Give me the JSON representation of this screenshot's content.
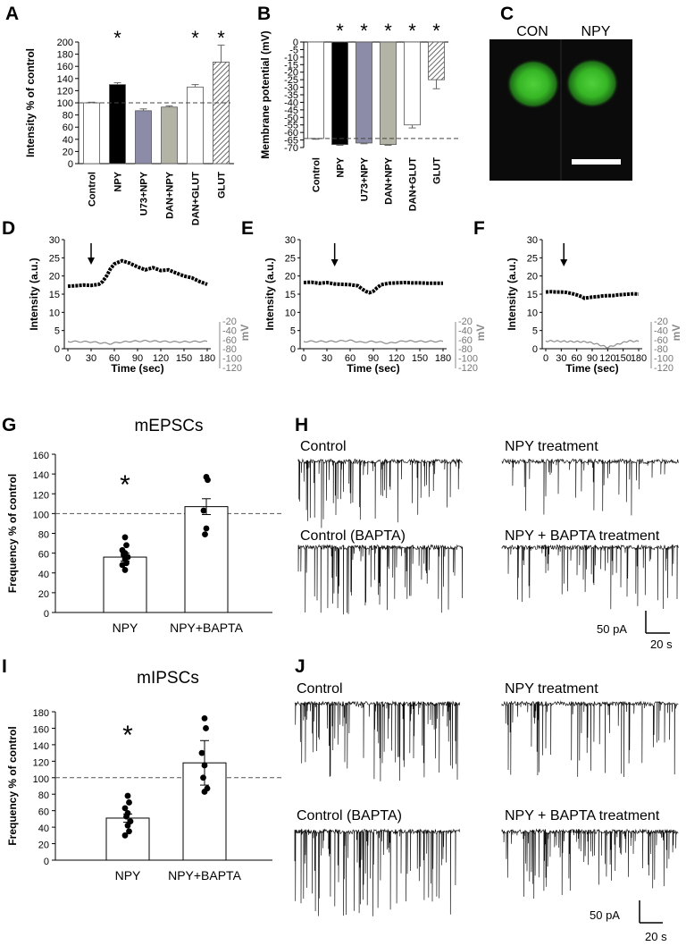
{
  "panel_letters": {
    "A": "A",
    "B": "B",
    "C": "C",
    "D": "D",
    "E": "E",
    "F": "F",
    "G": "G",
    "H": "H",
    "I": "I",
    "J": "J"
  },
  "significance_mark": "*",
  "chart_data": [
    {
      "panel": "A",
      "type": "bar",
      "ylabel": "Intensity % of control",
      "ylim": [
        0,
        200
      ],
      "yticks": [
        0,
        20,
        40,
        60,
        80,
        100,
        120,
        140,
        160,
        180,
        200
      ],
      "reference_line": 100,
      "categories": [
        "Control",
        "NPY",
        "U73+NPY",
        "DAN+NPY",
        "DAN+GLUT",
        "GLUT"
      ],
      "values": [
        100,
        130,
        87,
        93,
        126,
        167
      ],
      "errors": [
        1,
        3,
        3,
        2,
        4,
        28
      ],
      "fills": [
        "#ffffff",
        "#000000",
        "#8c8ca8",
        "#b4b4a6",
        "#ffffff",
        "hatch"
      ],
      "significant": [
        false,
        true,
        false,
        false,
        true,
        true
      ]
    },
    {
      "panel": "B",
      "type": "bar",
      "ylabel": "Membrane potential (mV)",
      "ylim": [
        -70,
        0
      ],
      "yticks": [
        0,
        -5,
        -10,
        -15,
        -20,
        -25,
        -30,
        -35,
        -40,
        -45,
        -50,
        -55,
        -60,
        -65,
        -70
      ],
      "reference_line": -64,
      "categories": [
        "Control",
        "NPY",
        "U73+NPY",
        "DAN+NPY",
        "DAN+GLUT",
        "GLUT"
      ],
      "values": [
        -64,
        -68,
        -67,
        -68,
        -55,
        -25
      ],
      "errors": [
        0.5,
        0.5,
        0.5,
        0.5,
        2,
        6
      ],
      "fills": [
        "#ffffff",
        "#000000",
        "#8c8ca8",
        "#b4b4a6",
        "#ffffff",
        "hatch"
      ],
      "significant": [
        false,
        true,
        true,
        true,
        true,
        true
      ]
    },
    {
      "panel": "D",
      "type": "line",
      "xlabel": "Time (sec)",
      "ylabel": "Intensity (a.u.)",
      "y2label": "mV",
      "xlim": [
        0,
        180
      ],
      "xticks": [
        0,
        30,
        60,
        90,
        120,
        150,
        180
      ],
      "ylim": [
        0,
        30
      ],
      "yticks": [
        0,
        5,
        10,
        15,
        20,
        25,
        30
      ],
      "y2ticks": [
        "-20",
        "-40",
        "-60",
        "-80",
        "-100",
        "-120"
      ],
      "stimulus_time": 30,
      "intensity": {
        "t": [
          0,
          10,
          20,
          30,
          40,
          45,
          50,
          55,
          60,
          70,
          80,
          90,
          100,
          110,
          120,
          130,
          140,
          150,
          160,
          170,
          180
        ],
        "v": [
          17.2,
          17.3,
          17.5,
          17.4,
          17.7,
          18.5,
          20,
          22,
          23.3,
          24.2,
          23.5,
          22.5,
          21.7,
          22.3,
          21.5,
          21.7,
          20.8,
          20,
          19.5,
          18.5,
          17.7
        ]
      },
      "potential_mV": {
        "t": [
          0,
          30,
          55,
          65,
          80,
          100,
          140,
          180
        ],
        "v": [
          -62,
          -63,
          -67,
          -64,
          -62,
          -61,
          -63,
          -62
        ]
      }
    },
    {
      "panel": "E",
      "type": "line",
      "xlabel": "Time (sec)",
      "ylabel": "Intensity (a.u.)",
      "y2label": "mV",
      "xlim": [
        0,
        180
      ],
      "xticks": [
        0,
        30,
        60,
        90,
        120,
        150,
        180
      ],
      "ylim": [
        0,
        30
      ],
      "yticks": [
        0,
        5,
        10,
        15,
        20,
        25,
        30
      ],
      "y2ticks": [
        "-20",
        "-40",
        "-60",
        "-80",
        "-100",
        "-120"
      ],
      "stimulus_time": 40,
      "intensity": {
        "t": [
          0,
          10,
          20,
          30,
          40,
          50,
          60,
          70,
          75,
          80,
          85,
          90,
          95,
          100,
          110,
          120,
          130,
          140,
          150,
          160,
          170,
          180
        ],
        "v": [
          18.2,
          18.3,
          18,
          18.2,
          17.8,
          17.7,
          17.6,
          17.3,
          16.5,
          15.8,
          15.4,
          15.8,
          16.8,
          17.6,
          18,
          18.1,
          18.2,
          18.1,
          18.1,
          18.0,
          18.0,
          18.0
        ]
      },
      "potential_mV": {
        "t": [
          0,
          40,
          60,
          75,
          90,
          110,
          130,
          150,
          180
        ],
        "v": [
          -62,
          -62,
          -60,
          -64,
          -62,
          -66,
          -61,
          -62,
          -62
        ]
      }
    },
    {
      "panel": "F",
      "type": "line",
      "xlabel": "Time (sec)",
      "ylabel": "Intensity (a.u.)",
      "y2label": "mV",
      "xlim": [
        0,
        180
      ],
      "xticks": [
        0,
        30,
        60,
        90,
        120,
        150,
        180
      ],
      "ylim": [
        0,
        30
      ],
      "yticks": [
        0,
        5,
        10,
        15,
        20,
        25,
        30
      ],
      "y2ticks": [
        "-20",
        "-40",
        "-60",
        "-80",
        "-100",
        "-120"
      ],
      "stimulus_time": 35,
      "intensity": {
        "t": [
          0,
          10,
          20,
          30,
          40,
          50,
          60,
          70,
          75,
          80,
          90,
          100,
          110,
          120,
          130,
          140,
          150,
          160,
          170,
          180
        ],
        "v": [
          15.6,
          15.7,
          15.6,
          15.6,
          15.5,
          15.2,
          14.8,
          14.3,
          13.9,
          14.0,
          14.2,
          14.3,
          14.5,
          14.6,
          14.6,
          14.8,
          14.9,
          15.0,
          15.1,
          15.0
        ]
      },
      "potential_mV": {
        "t": [
          0,
          40,
          80,
          100,
          120,
          140,
          160,
          180
        ],
        "v": [
          -61,
          -62,
          -63,
          -68,
          -75,
          -68,
          -61,
          -62
        ]
      }
    },
    {
      "panel": "G",
      "type": "bar",
      "title": "mEPSCs",
      "ylabel": "Frequency % of control",
      "ylim": [
        0,
        160
      ],
      "yticks": [
        0,
        20,
        40,
        60,
        80,
        100,
        120,
        140,
        160
      ],
      "reference_line": 100,
      "categories": [
        "NPY",
        "NPY+BAPTA"
      ],
      "values": [
        56,
        107
      ],
      "errors": [
        4,
        8
      ],
      "points": [
        [
          76,
          68,
          63,
          60,
          58,
          56,
          54,
          50,
          48,
          43
        ],
        [
          137,
          134,
          103,
          85,
          79
        ]
      ],
      "significant": [
        true,
        false
      ]
    },
    {
      "panel": "I",
      "type": "bar",
      "title": "mIPSCs",
      "ylabel": "Frequency % of control",
      "ylim": [
        0,
        180
      ],
      "yticks": [
        0,
        20,
        40,
        60,
        80,
        100,
        120,
        140,
        160,
        180
      ],
      "reference_line": 100,
      "categories": [
        "NPY",
        "NPY+BAPTA"
      ],
      "values": [
        51,
        118
      ],
      "errors": [
        5,
        27
      ],
      "points": [
        [
          78,
          70,
          63,
          57,
          53,
          47,
          42,
          35,
          30
        ],
        [
          172,
          160,
          130,
          115,
          100,
          87,
          83
        ]
      ],
      "significant": [
        true,
        false
      ]
    }
  ],
  "panel_C": {
    "labels": [
      "CON",
      "NPY"
    ],
    "cell_color": "#3ab82a"
  },
  "panel_H": {
    "traces": [
      "Control",
      "NPY treatment",
      "Control (BAPTA)",
      "NPY + BAPTA treatment"
    ],
    "scale_current": "50 pA",
    "scale_time": "20 s"
  },
  "panel_J": {
    "traces": [
      "Control",
      "NPY treatment",
      "Control (BAPTA)",
      "NPY + BAPTA treatment"
    ],
    "scale_current": "50 pA",
    "scale_time": "20 s"
  }
}
